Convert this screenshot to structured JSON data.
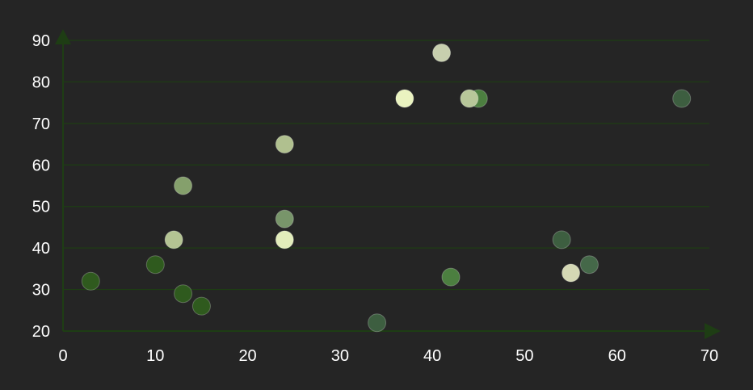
{
  "colors": {
    "background": "#252525",
    "grid": "#1e3d14",
    "axis": "#1e3d14",
    "tick_label": "#ffffff",
    "point_stroke": "#ffffff"
  },
  "chart_data": {
    "type": "scatter",
    "title": "",
    "xlabel": "",
    "ylabel": "",
    "xlim": [
      0,
      70
    ],
    "ylim": [
      20,
      90
    ],
    "x_ticks": [
      0,
      10,
      20,
      30,
      40,
      50,
      60,
      70
    ],
    "y_ticks": [
      20,
      30,
      40,
      50,
      60,
      70,
      80,
      90
    ],
    "grid": "horizontal",
    "legend": "none",
    "points": [
      {
        "x": 3,
        "y": 32,
        "color": "#2f5a1e"
      },
      {
        "x": 10,
        "y": 36,
        "color": "#2f5a1e"
      },
      {
        "x": 12,
        "y": 42,
        "color": "#b4c493"
      },
      {
        "x": 13,
        "y": 29,
        "color": "#2f5a1e"
      },
      {
        "x": 13,
        "y": 55,
        "color": "#85a06c"
      },
      {
        "x": 15,
        "y": 26,
        "color": "#2f5a1e"
      },
      {
        "x": 24,
        "y": 65,
        "color": "#b0c08f"
      },
      {
        "x": 24,
        "y": 47,
        "color": "#78956a"
      },
      {
        "x": 24,
        "y": 42,
        "color": "#e2edbb"
      },
      {
        "x": 34,
        "y": 22,
        "color": "#3d5e40"
      },
      {
        "x": 37,
        "y": 76,
        "color": "#eaf3c0"
      },
      {
        "x": 41,
        "y": 87,
        "color": "#c7cfae"
      },
      {
        "x": 42,
        "y": 33,
        "color": "#4c7f40"
      },
      {
        "x": 45,
        "y": 76,
        "color": "#4c7f40"
      },
      {
        "x": 44,
        "y": 76,
        "color": "#b8c79a"
      },
      {
        "x": 54,
        "y": 42,
        "color": "#3d5e40"
      },
      {
        "x": 55,
        "y": 34,
        "color": "#d4d8b4"
      },
      {
        "x": 57,
        "y": 36,
        "color": "#456849"
      },
      {
        "x": 67,
        "y": 76,
        "color": "#3d5e40"
      }
    ]
  }
}
